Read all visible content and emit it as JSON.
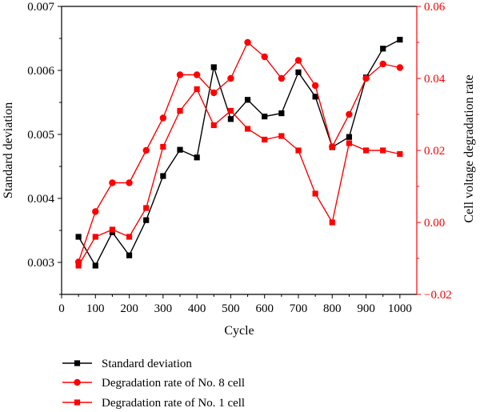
{
  "chart_data": {
    "type": "line",
    "x": [
      50,
      100,
      150,
      200,
      250,
      300,
      350,
      400,
      450,
      500,
      550,
      600,
      650,
      700,
      750,
      800,
      850,
      900,
      950,
      1000
    ],
    "xlabel": "Cycle",
    "xlim": [
      0,
      1050
    ],
    "xticks": [
      "0",
      "100",
      "200",
      "300",
      "400",
      "500",
      "600",
      "700",
      "800",
      "900",
      "1000"
    ],
    "y_left": {
      "label": "Standard deviation",
      "lim": [
        0.0025,
        0.007
      ],
      "ticks": [
        "0.003",
        "0.004",
        "0.005",
        "0.006",
        "0.007"
      ],
      "color": "#000000"
    },
    "y_right": {
      "label": "Cell voltage degradation rate",
      "lim": [
        -0.02,
        0.06
      ],
      "ticks": [
        "−0.02",
        "0.00",
        "0.02",
        "0.04",
        "0.06"
      ],
      "color": "#ff0000"
    },
    "series": [
      {
        "name": "Standard deviation",
        "axis": "left",
        "color": "#000000",
        "marker": "square",
        "values": [
          0.0034,
          0.00295,
          0.00347,
          0.00311,
          0.00366,
          0.00435,
          0.00476,
          0.00464,
          0.00605,
          0.00524,
          0.00554,
          0.00528,
          0.00533,
          0.00597,
          0.00559,
          0.0048,
          0.00496,
          0.00589,
          0.00634,
          0.00648
        ]
      },
      {
        "name": "Degradation rate of No. 8 cell",
        "axis": "right",
        "color": "#ff0000",
        "marker": "circle",
        "values": [
          -0.011,
          0.003,
          0.011,
          0.011,
          0.02,
          0.029,
          0.041,
          0.041,
          0.036,
          0.04,
          0.05,
          0.046,
          0.04,
          0.045,
          0.038,
          0.021,
          0.03,
          0.04,
          0.044,
          0.043
        ]
      },
      {
        "name": "Degradation rate of No. 1 cell",
        "axis": "right",
        "color": "#ff0000",
        "marker": "square",
        "values": [
          -0.012,
          -0.004,
          -0.002,
          -0.004,
          0.004,
          0.021,
          0.031,
          0.037,
          0.027,
          0.031,
          0.026,
          0.023,
          0.024,
          0.02,
          0.008,
          0.0,
          0.022,
          0.02,
          0.02,
          0.019
        ]
      }
    ],
    "legend_position": "bottom-left"
  }
}
